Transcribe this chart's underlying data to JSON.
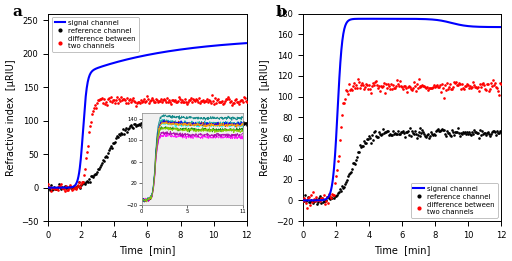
{
  "panel_a": {
    "title": "a",
    "xlim": [
      0,
      12
    ],
    "ylim": [
      -50,
      260
    ],
    "yticks": [
      -50,
      0,
      50,
      100,
      150,
      200,
      250
    ],
    "xticks": [
      0,
      2,
      4,
      6,
      8,
      10,
      12
    ],
    "ylabel": "Refractive index  [μRIU]",
    "xlabel": "Time  [min]",
    "signal_color": "#0000ff",
    "reference_color": "#000000",
    "difference_color": "#ff0000"
  },
  "panel_b": {
    "title": "b",
    "xlim": [
      0,
      12
    ],
    "ylim": [
      -20,
      180
    ],
    "yticks": [
      -20,
      0,
      20,
      40,
      60,
      80,
      100,
      120,
      140,
      160,
      180
    ],
    "xticks": [
      0,
      2,
      4,
      6,
      8,
      10,
      12
    ],
    "ylabel": "Refractive index  [μRIU]",
    "xlabel": "Time  [min]",
    "signal_color": "#0000ff",
    "reference_color": "#000000",
    "difference_color": "#ff0000"
  },
  "legend_a": {
    "signal_label": "signal channel",
    "reference_label": "reference channel",
    "difference_label": "difference between\ntwo channels"
  },
  "legend_b": {
    "signal_label": "signal channel",
    "reference_label": "reference channel",
    "difference_label": "difference between\ntwo channels"
  },
  "inset_colors": [
    "cyan",
    "#00aaaa",
    "green",
    "red",
    "blue",
    "magenta",
    "orange",
    "#aa00aa",
    "teal",
    "#88cc00"
  ],
  "background": "#ffffff"
}
